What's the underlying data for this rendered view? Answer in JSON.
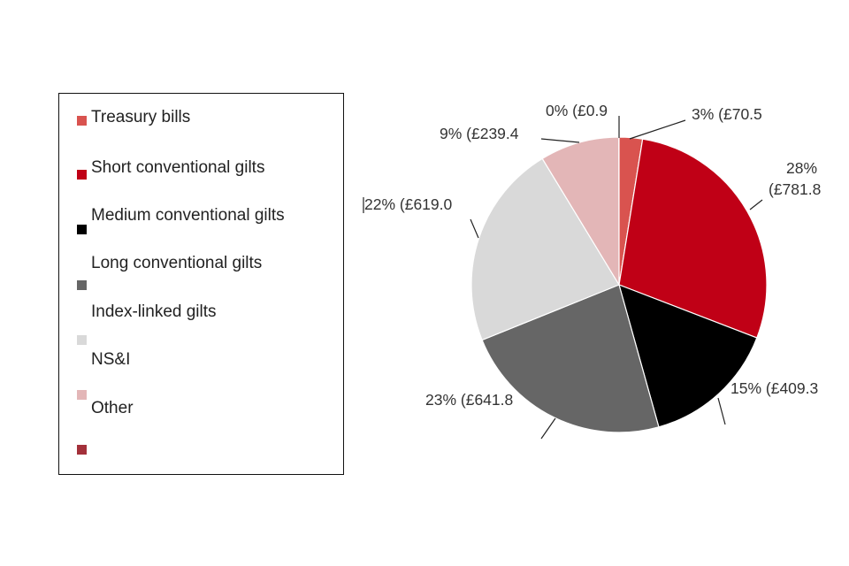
{
  "chart_data": {
    "type": "pie",
    "slices": [
      {
        "name": "Treasury bills",
        "value": 70.5,
        "label": "3% (£70.5",
        "color": "#d9534f"
      },
      {
        "name": "Short conventional gilts",
        "value": 781.8,
        "label_lines": [
          "28%",
          "(£781.8"
        ],
        "color": "#c00016"
      },
      {
        "name": "Medium conventional gilts",
        "value": 409.3,
        "label": "15% (£409.3",
        "color": "#000000"
      },
      {
        "name": "Long conventional gilts",
        "value": 641.8,
        "label": "23% (£641.8",
        "color": "#666666"
      },
      {
        "name": "Index-linked gilts",
        "value": 619.0,
        "label": "22% (£619.0",
        "color": "#d9d9d9"
      },
      {
        "name": "NS&I",
        "value": 239.4,
        "label": "9% (£239.4",
        "color": "#e3b6b7"
      },
      {
        "name": "Other",
        "value": 0.9,
        "label": "0% (£0.9",
        "color": "#a3303a"
      }
    ],
    "legend": {
      "placement": "left",
      "labels": [
        "Treasury bills",
        "Short conventional gilts",
        "Medium conventional gilts",
        "Long conventional gilts",
        "Index-linked gilts",
        "NS&I",
        "Other"
      ],
      "swatch_colors": [
        "#d9534f",
        "#c00016",
        "#000000",
        "#666666",
        "#d9d9d9",
        "#e3b6b7",
        "#a3303a"
      ]
    }
  }
}
